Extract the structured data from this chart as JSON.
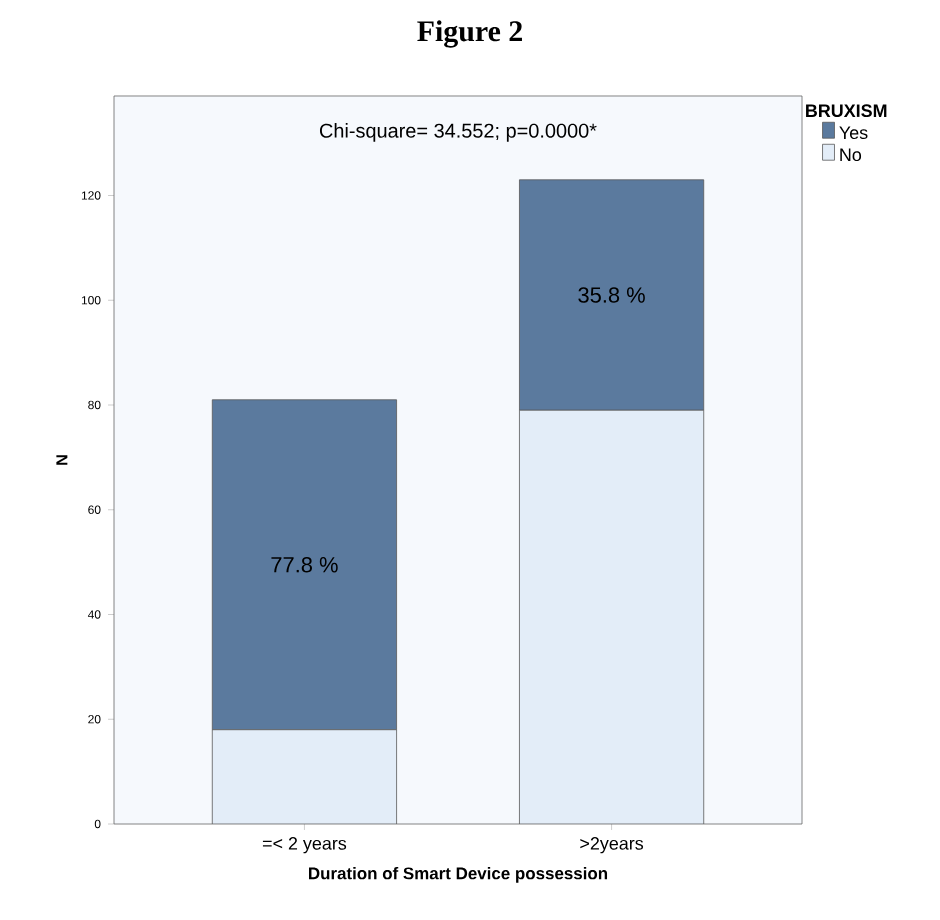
{
  "chart_data": {
    "type": "bar",
    "title": "Figure 2",
    "annotations": [
      "Chi-square= 34.552; p=0.0000*",
      "77.8 %",
      "35.8 %"
    ],
    "xlabel": "Duration of Smart Device possession",
    "ylabel": "N",
    "legend_title": "BRUXISM",
    "categories": [
      "=< 2 years",
      ">2years"
    ],
    "stacked": true,
    "series": [
      {
        "name": "No",
        "color": "#e3edf8",
        "values": [
          18,
          79
        ]
      },
      {
        "name": "Yes",
        "color": "#5b7a9e",
        "values": [
          63,
          44
        ]
      }
    ],
    "ylim": [
      0,
      139
    ],
    "yticks": [
      0,
      20,
      40,
      60,
      80,
      100,
      120
    ],
    "legend": "top right",
    "grid": false
  }
}
